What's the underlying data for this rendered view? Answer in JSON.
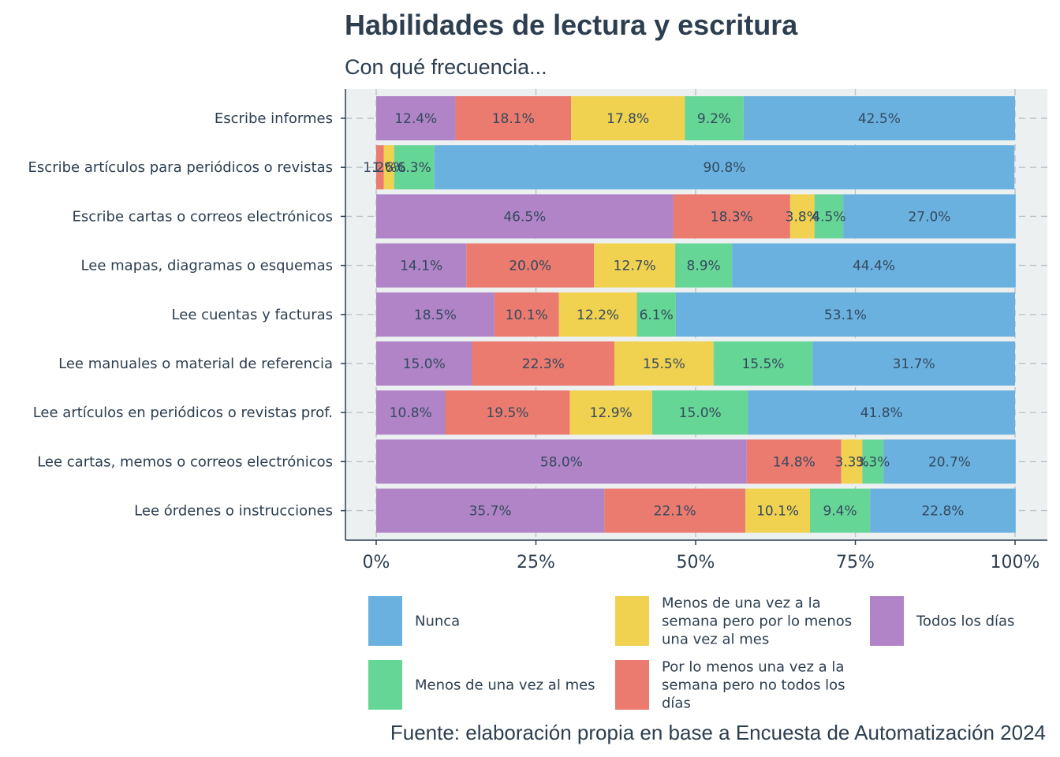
{
  "chart_data": {
    "type": "bar",
    "orientation": "horizontal",
    "stacked": true,
    "title": "Habilidades de lectura y escritura",
    "subtitle": "Con qué frecuencia...",
    "caption": "Fuente: elaboración propia en base a Encuesta de Automatización 2024",
    "categories": [
      "Escribe informes",
      "Escribe artículos para periódicos o revistas",
      "Escribe cartas o correos electrónicos",
      "Lee mapas, diagramas o esquemas",
      "Lee cuentas y facturas",
      "Lee manuales o material de referencia",
      "Lee artículos en periódicos o revistas prof.",
      "Lee cartas, memos o correos electrónicos",
      "Lee órdenes o instrucciones"
    ],
    "series": [
      {
        "name": "Todos los días",
        "color": "#b084c7",
        "values": [
          12.4,
          0.0,
          46.5,
          14.1,
          18.5,
          15.0,
          10.8,
          58.0,
          35.7
        ],
        "labels": [
          "12.4%",
          "",
          "46.5%",
          "14.1%",
          "18.5%",
          "15.0%",
          "10.8%",
          "58.0%",
          "35.7%"
        ]
      },
      {
        "name": "Por lo menos una vez a la semana pero no todos los días",
        "color": "#ea7b6e",
        "values": [
          18.1,
          1.2,
          18.3,
          20.0,
          10.1,
          22.3,
          19.5,
          14.8,
          22.1
        ],
        "labels": [
          "18.1%",
          "1.2%",
          "18.3%",
          "20.0%",
          "10.1%",
          "22.3%",
          "19.5%",
          "14.8%",
          "22.1%"
        ]
      },
      {
        "name": "Menos de una vez a la semana pero por lo menos una vez al mes",
        "color": "#f0d250",
        "values": [
          17.8,
          1.6,
          3.8,
          12.7,
          12.2,
          15.5,
          12.9,
          3.3,
          10.1
        ],
        "labels": [
          "17.8%",
          "1.6%",
          "3.8%",
          "12.7%",
          "12.2%",
          "15.5%",
          "12.9%",
          "3.3%",
          "10.1%"
        ]
      },
      {
        "name": "Menos de una vez al mes",
        "color": "#66d696",
        "values": [
          9.2,
          6.3,
          4.5,
          8.9,
          6.1,
          15.5,
          15.0,
          3.3,
          9.4
        ],
        "labels": [
          "9.2%",
          "6.3%",
          "4.5%",
          "8.9%",
          "6.1%",
          "15.5%",
          "15.0%",
          "3.3%",
          "9.4%"
        ]
      },
      {
        "name": "Nunca",
        "color": "#6ab1e0",
        "values": [
          42.5,
          90.8,
          27.0,
          44.4,
          53.1,
          31.7,
          41.8,
          20.7,
          22.8
        ],
        "labels": [
          "42.5%",
          "90.8%",
          "27.0%",
          "44.4%",
          "53.1%",
          "31.7%",
          "41.8%",
          "20.7%",
          "22.8%"
        ]
      }
    ],
    "xlim": [
      0,
      100
    ],
    "xticks": [
      "0%",
      "25%",
      "50%",
      "75%",
      "100%"
    ],
    "xtick_values": [
      0,
      25,
      50,
      75,
      100
    ],
    "grid": true,
    "legend_position": "bottom",
    "legend": [
      {
        "name": "Nunca",
        "color": "#6ab1e0",
        "lines": [
          "Nunca"
        ]
      },
      {
        "name": "Menos de una vez al mes",
        "color": "#66d696",
        "lines": [
          "Menos de una vez al mes"
        ]
      },
      {
        "name": "Menos de una vez a la semana pero por lo menos una vez al mes",
        "color": "#f0d250",
        "lines": [
          "Menos de una vez a la",
          "semana pero por lo menos",
          "una vez al mes"
        ]
      },
      {
        "name": "Por lo menos una vez a la semana pero no todos los días",
        "color": "#ea7b6e",
        "lines": [
          "Por lo menos una vez a la",
          "semana pero no todos los",
          "días"
        ]
      },
      {
        "name": "Todos los días",
        "color": "#b084c7",
        "lines": [
          "Todos los días"
        ]
      }
    ]
  }
}
